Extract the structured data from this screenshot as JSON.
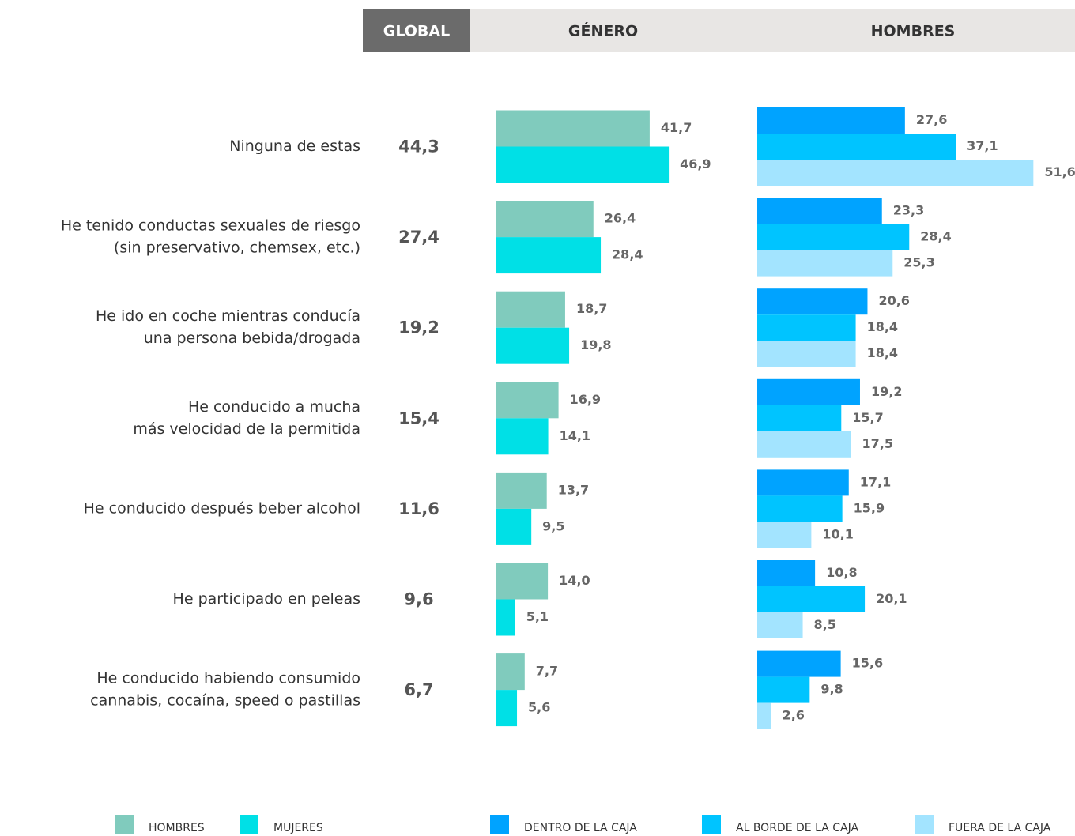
{
  "chart_data": [
    {
      "type": "table",
      "title": "GLOBAL",
      "categories": [
        [
          "Ninguna de estas"
        ],
        [
          "He tenido conductas sexuales de riesgo",
          "(sin preservativo, chemsex, etc.)"
        ],
        [
          "He ido en coche mientras conducía",
          "una persona bebida/drogada"
        ],
        [
          "He conducido a mucha",
          "más velocidad de la permitida"
        ],
        [
          "He conducido después beber alcohol"
        ],
        [
          "He participado en peleas"
        ],
        [
          "He conducido habiendo consumido",
          "cannabis, cocaína, speed o pastillas"
        ]
      ],
      "values": [
        44.3,
        27.4,
        19.2,
        15.4,
        11.6,
        9.6,
        6.7
      ],
      "value_labels": [
        "44,3",
        "27,4",
        "19,2",
        "15,4",
        "11,6",
        "9,6",
        "6,7"
      ]
    },
    {
      "type": "bar",
      "title": "GÉNERO",
      "orientation": "horizontal",
      "series": [
        {
          "name": "HOMBRES",
          "color": "#80cbbd",
          "values": [
            41.7,
            26.4,
            18.7,
            16.9,
            13.7,
            14.0,
            7.7
          ],
          "value_labels": [
            "41,7",
            "26,4",
            "18,7",
            "16,9",
            "13,7",
            "14,0",
            "7,7"
          ]
        },
        {
          "name": "MUJERES",
          "color": "#00e0e6",
          "values": [
            46.9,
            28.4,
            19.8,
            14.1,
            9.5,
            5.1,
            5.6
          ],
          "value_labels": [
            "46,9",
            "28,4",
            "19,8",
            "14,1",
            "9,5",
            "5,1",
            "5,6"
          ]
        }
      ]
    },
    {
      "type": "bar",
      "title": "HOMBRES",
      "orientation": "horizontal",
      "series": [
        {
          "name": "DENTRO DE LA CAJA",
          "color": "#00a3ff",
          "values": [
            27.6,
            23.3,
            20.6,
            19.2,
            17.1,
            10.8,
            15.6
          ],
          "value_labels": [
            "27,6",
            "23,3",
            "20,6",
            "19,2",
            "17,1",
            "10,8",
            "15,6"
          ]
        },
        {
          "name": "AL BORDE DE LA CAJA",
          "color": "#00c4ff",
          "values": [
            37.1,
            28.4,
            18.4,
            15.7,
            15.9,
            20.1,
            9.8
          ],
          "value_labels": [
            "37,1",
            "28,4",
            "18,4",
            "15,7",
            "15,9",
            "20,1",
            "9,8"
          ]
        },
        {
          "name": "FUERA DE LA CAJA",
          "color": "#a3e4ff",
          "values": [
            51.6,
            25.3,
            18.4,
            17.5,
            10.1,
            8.5,
            2.6
          ],
          "value_labels": [
            "51,6",
            "25,3",
            "18,4",
            "17,5",
            "10,1",
            "8,5",
            "2,6"
          ]
        }
      ]
    }
  ]
}
